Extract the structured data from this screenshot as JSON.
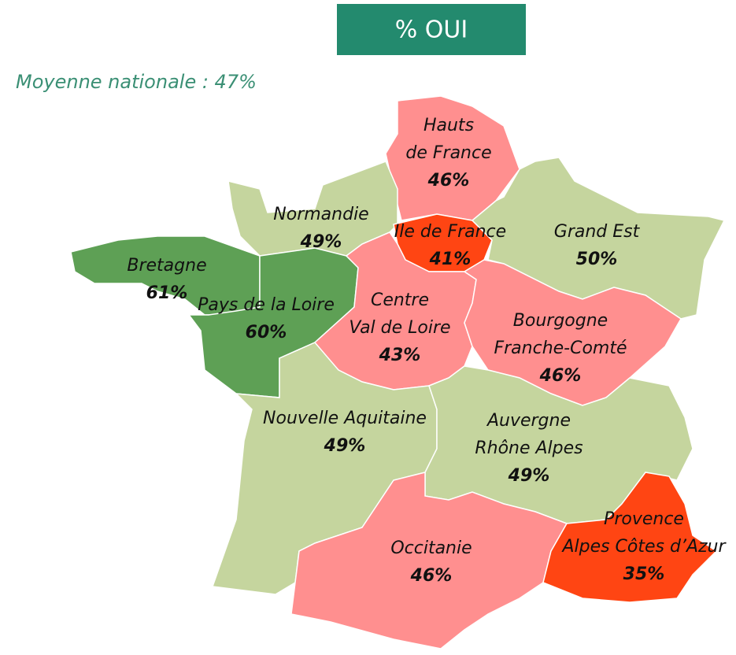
{
  "title": "% OUI",
  "subtitle": "Moyenne nationale : 47%",
  "regions": [
    {
      "name": [
        "Hauts",
        "de France"
      ],
      "value": "46%",
      "color": "#ff8f8f"
    },
    {
      "name": [
        "Normandie"
      ],
      "value": "49%",
      "color": "#c5d59e"
    },
    {
      "name": [
        "Bretagne"
      ],
      "value": "61%",
      "color": "#5ea055"
    },
    {
      "name": [
        "Pays de la Loire"
      ],
      "value": "60%",
      "color": "#5ea055"
    },
    {
      "name": [
        "Ile de France"
      ],
      "value": "41%",
      "color": "#ff4513"
    },
    {
      "name": [
        "Grand Est"
      ],
      "value": "50%",
      "color": "#c5d59e"
    },
    {
      "name": [
        "Centre",
        "Val de Loire"
      ],
      "value": "43%",
      "color": "#ff8f8f"
    },
    {
      "name": [
        "Bourgogne",
        "Franche-Comté"
      ],
      "value": "46%",
      "color": "#ff8f8f"
    },
    {
      "name": [
        "Nouvelle Aquitaine"
      ],
      "value": "49%",
      "color": "#c5d59e"
    },
    {
      "name": [
        "Auvergne",
        "Rhône Alpes"
      ],
      "value": "49%",
      "color": "#c5d59e"
    },
    {
      "name": [
        "Occitanie"
      ],
      "value": "46%",
      "color": "#ff8f8f"
    },
    {
      "name": [
        "Provence",
        "Alpes Côtes d’Azur"
      ],
      "value": "35%",
      "color": "#ff4513"
    }
  ]
}
